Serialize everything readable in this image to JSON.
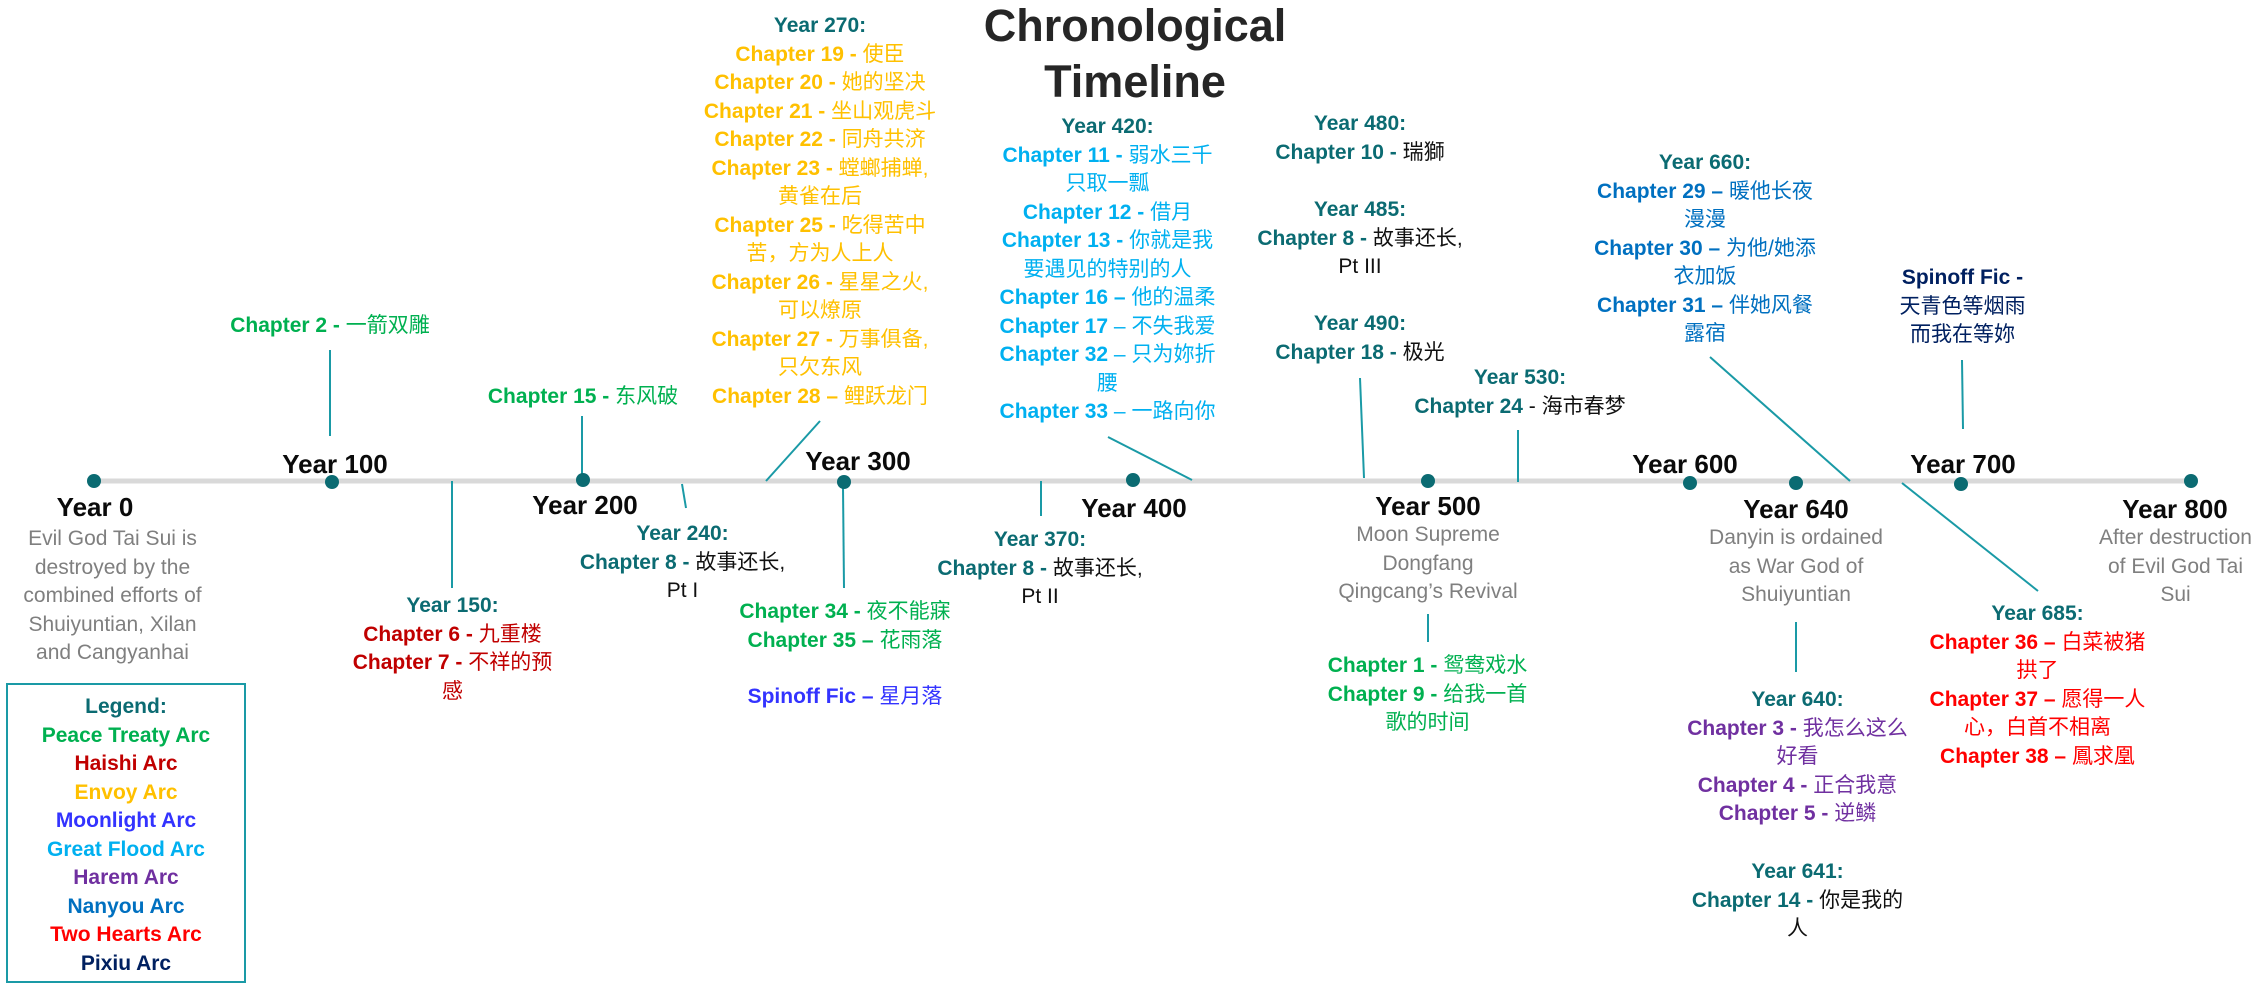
{
  "title": {
    "line1": "Chronological",
    "line2": "Timeline"
  },
  "colors": {
    "teal": "#0b6b72",
    "line": "#d9d9d9",
    "connector": "#1a9aa6",
    "peace_treaty": "#00b050",
    "haishi": "#c00000",
    "envoy": "#ffc000",
    "moonlight": "#3333ff",
    "great_flood": "#00b0f0",
    "harem": "#7030a0",
    "nanyou": "#0070c0",
    "two_hearts": "#ff0000",
    "pixiu": "#002060"
  },
  "timeline": {
    "milestones": [
      {
        "label": "Year 0",
        "desc": [
          "Evil God Tai Sui is",
          "destroyed by the",
          "combined efforts of",
          "Shuiyuntian, Xilan",
          "and Cangyanhai"
        ]
      },
      {
        "label": "Year 100"
      },
      {
        "label": "Year 200"
      },
      {
        "label": "Year 300"
      },
      {
        "label": "Year 400"
      },
      {
        "label": "Year 500",
        "desc": [
          "Moon Supreme",
          "Dongfang",
          "Qingcang’s Revival"
        ]
      },
      {
        "label": "Year 600"
      },
      {
        "label": "Year 640",
        "desc": [
          "Danyin is ordained",
          "as War God of",
          "Shuiyuntian"
        ]
      },
      {
        "label": "Year 700"
      },
      {
        "label": "Year 800",
        "desc": [
          "After destruction",
          "of Evil God Tai",
          "Sui"
        ]
      }
    ]
  },
  "events": {
    "ch2": {
      "chapter": "Chapter 2 - ",
      "name": "一箭双雕"
    },
    "ch15": {
      "chapter": "Chapter 15 - ",
      "name": "东风破"
    },
    "year150": {
      "year": "Year 150:",
      "items": [
        {
          "chapter": "Chapter 6 - ",
          "name": "九重楼"
        },
        {
          "chapter": "Chapter 7 - ",
          "name": "不祥的预",
          "cont": "感"
        }
      ]
    },
    "year240": {
      "year": "Year 240:",
      "chapter": "Chapter 8 - ",
      "name": "故事还长,",
      "cont": "Pt I"
    },
    "year270": {
      "year": "Year 270:",
      "items": [
        {
          "chapter": "Chapter 19 - ",
          "name": "使臣"
        },
        {
          "chapter": "Chapter 20 - ",
          "name": "她的坚决"
        },
        {
          "chapter": "Chapter 21 - ",
          "name": "坐山观虎斗"
        },
        {
          "chapter": "Chapter 22 - ",
          "name": "同舟共济"
        },
        {
          "chapter": "Chapter 23 - ",
          "name": "螳螂捕蝉,",
          "cont": "黄雀在后"
        },
        {
          "chapter": "Chapter 25 - ",
          "name": " 吃得苦中",
          "cont": "苦，方为人上人"
        },
        {
          "chapter": "Chapter 26 - ",
          "name": "星星之火,",
          "cont": "可以燎原"
        },
        {
          "chapter": "Chapter 27 - ",
          "name": "万事俱备,",
          "cont": "只欠东风"
        },
        {
          "chapter": "Chapter 28 – ",
          "name": "鲤跃龙门"
        }
      ]
    },
    "year300_below": {
      "items": [
        {
          "chapter": "Chapter 34 - ",
          "name": "夜不能寐"
        },
        {
          "chapter": "Chapter 35 – ",
          "name": "花雨落"
        }
      ],
      "spinoff": {
        "chapter": "Spinoff Fic – ",
        "name": "星月落"
      }
    },
    "year370": {
      "year": "Year 370:",
      "chapter": "Chapter 8 - ",
      "name": "故事还长,",
      "cont": "Pt II"
    },
    "year420": {
      "year": "Year 420:",
      "items": [
        {
          "chapter": "Chapter 11 - ",
          "name": "弱水三千",
          "cont": "只取一瓢"
        },
        {
          "chapter": "Chapter 12 - ",
          "name": "借月"
        },
        {
          "chapter": "Chapter 13 - ",
          "name": "你就是我",
          "cont": "要遇见的特别的人"
        },
        {
          "chapter": "Chapter 16 – ",
          "name": "他的温柔"
        },
        {
          "chapter": "Chapter 17",
          "name": " – 不失我爱"
        },
        {
          "chapter": "Chapter 32",
          "name": " – 只为妳折",
          "cont": "腰"
        },
        {
          "chapter": "Chapter 33",
          "name": " – 一路向你"
        }
      ]
    },
    "year480": {
      "year": "Year 480:",
      "chapter": "Chapter 10 - ",
      "name": "瑞獅"
    },
    "year485": {
      "year": "Year 485:",
      "chapter": "Chapter 8 - ",
      "name": "故事还长,",
      "cont": "Pt III"
    },
    "year490": {
      "year": "Year 490:",
      "chapter": "Chapter 18 - ",
      "name": "极光"
    },
    "year530": {
      "year": "Year 530:",
      "chapter": "Chapter 24",
      "name": " - 海市春梦"
    },
    "year500_below": {
      "items": [
        {
          "chapter": "Chapter 1 - ",
          "name": "鸳鸯戏水"
        },
        {
          "chapter": "Chapter 9 - ",
          "name": "给我一首",
          "cont": "歌的时间"
        }
      ]
    },
    "year660": {
      "year": "Year 660:",
      "items": [
        {
          "chapter": "Chapter 29 – ",
          "name": "暖他长夜",
          "cont": "漫漫"
        },
        {
          "chapter": "Chapter 30 – ",
          "name": "为他/她添",
          "cont": "衣加饭"
        },
        {
          "chapter": "Chapter 31 – ",
          "name": "伴她风餐",
          "cont": "露宿"
        }
      ]
    },
    "pixiu_spinoff": {
      "chapter": "Spinoff Fic -",
      "name": "天青色等烟雨",
      "cont": "而我在等妳"
    },
    "year640": {
      "year": "Year 640:",
      "items": [
        {
          "chapter": "Chapter 3 - ",
          "name": "我怎么这么",
          "cont": "好看"
        },
        {
          "chapter": "Chapter 4 - ",
          "name": "正合我意"
        },
        {
          "chapter": "Chapter 5 - ",
          "name": "逆鳞"
        }
      ]
    },
    "year641": {
      "year": "Year 641:",
      "chapter": "Chapter 14 - ",
      "name": "你是我的",
      "cont": "人"
    },
    "year685": {
      "year": "Year 685:",
      "items": [
        {
          "chapter": "Chapter 36 – ",
          "name": "白菜被猪",
          "cont": "拱了"
        },
        {
          "chapter": "Chapter 37 – ",
          "name": "愿得一人",
          "cont": "心，白首不相离"
        },
        {
          "chapter": "Chapter 38 – ",
          "name": "鳳求凰"
        }
      ]
    }
  },
  "legend": {
    "title": "Legend:",
    "items": [
      {
        "label": "Peace Treaty Arc",
        "color": "#00b050"
      },
      {
        "label": "Haishi Arc",
        "color": "#c00000"
      },
      {
        "label": "Envoy Arc",
        "color": "#ffc000"
      },
      {
        "label": "Moonlight Arc",
        "color": "#3333ff"
      },
      {
        "label": "Great Flood Arc",
        "color": "#00b0f0"
      },
      {
        "label": "Harem Arc",
        "color": "#7030a0"
      },
      {
        "label": "Nanyou Arc",
        "color": "#0070c0"
      },
      {
        "label": "Two Hearts Arc",
        "color": "#ff0000"
      },
      {
        "label": "Pixiu Arc",
        "color": "#002060"
      }
    ]
  }
}
